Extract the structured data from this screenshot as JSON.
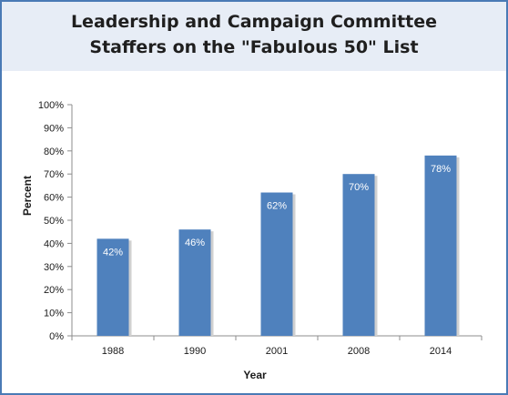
{
  "chart_data": {
    "type": "bar",
    "title": "Leadership and Campaign Committee Staffers on the \"Fabulous 50\" List",
    "title_lines": [
      "Leadership and Campaign Committee",
      "Staffers on the \"Fabulous 50\" List"
    ],
    "xlabel": "Year",
    "ylabel": "Percent",
    "categories": [
      "1988",
      "1990",
      "2001",
      "2008",
      "2014"
    ],
    "values": [
      42,
      46,
      62,
      70,
      78
    ],
    "data_labels": [
      "42%",
      "46%",
      "62%",
      "70%",
      "78%"
    ],
    "ylim": [
      0,
      100
    ],
    "y_ticks": [
      0,
      10,
      20,
      30,
      40,
      50,
      60,
      70,
      80,
      90,
      100
    ],
    "y_tick_labels": [
      "0%",
      "10%",
      "20%",
      "30%",
      "40%",
      "50%",
      "60%",
      "70%",
      "80%",
      "90%",
      "100%"
    ],
    "grid": false,
    "legend": "none",
    "bar_color": "#4f81bd",
    "band_color": "#e7edf6",
    "border_color": "#4a7ab5"
  }
}
